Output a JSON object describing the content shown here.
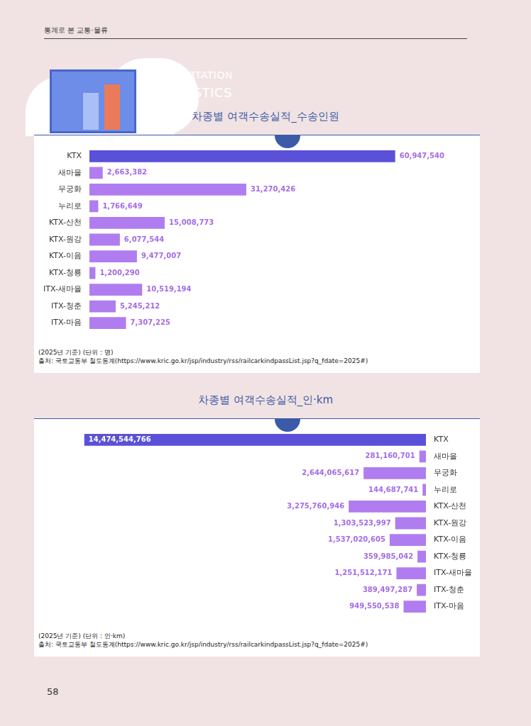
{
  "page": {
    "header": "통계로 본 교통·물류",
    "banner": [
      "TRANSPORTATION",
      "STATISTICS"
    ],
    "page_number": "58"
  },
  "chart_data": [
    {
      "type": "bar",
      "title": "차종별 여객수송실적_수송인원",
      "orientation": "horizontal",
      "categories": [
        "KTX",
        "새마을",
        "무궁화",
        "누리로",
        "KTX-산천",
        "KTX-원강",
        "KTX-이음",
        "KTX-청룡",
        "ITX-새마을",
        "ITX-청춘",
        "ITX-마음"
      ],
      "values": [
        60947540,
        2663382,
        31270426,
        1766649,
        15008773,
        6077544,
        9477007,
        1200290,
        10519194,
        5245212,
        7307225
      ],
      "value_labels": [
        "60,947,540",
        "2,663,382",
        "31,270,426",
        "1,766,649",
        "15,008,773",
        "6,077,544",
        "9,477,007",
        "1,200,290",
        "10,519,194",
        "5,245,212",
        "7,307,225"
      ],
      "colors": [
        "#5b50d8",
        "#b07df0",
        "#b07df0",
        "#b07df0",
        "#b07df0",
        "#b07df0",
        "#b07df0",
        "#b07df0",
        "#b07df0",
        "#b07df0",
        "#b07df0"
      ],
      "xlim": [
        0,
        75000000
      ],
      "data_labels": true,
      "tick_labels": "y",
      "grid": false,
      "note": "(2025년 기준) (단위 : 명)",
      "source": "출처: 국토교통부 철도통계(https://www.kric.go.kr/jsp/industry/rss/railcarkindpassList.jsp?q_fdate=2025#)"
    },
    {
      "type": "bar",
      "title": "차종별 여객수송실적_인·km",
      "orientation": "horizontal",
      "categories": [
        "KTX",
        "새마을",
        "무궁화",
        "누리로",
        "KTX-산천",
        "KTX-원강",
        "KTX-이음",
        "KTX-청룡",
        "ITX-새마을",
        "ITX-청춘",
        "ITX-마음"
      ],
      "values": [
        14474544766,
        281160701,
        2644065617,
        144687741,
        3275760946,
        1303523997,
        1537020605,
        359985042,
        1251512171,
        389497287,
        949550538
      ],
      "value_labels": [
        "14,474,544,766",
        "281,160,701",
        "2,644,065,617",
        "144,687,741",
        "3,275,760,946",
        "1,303,523,997",
        "1,537,020,605",
        "359,985,042",
        "1,251,512,171",
        "389,497,287",
        "949,550,538"
      ],
      "colors": [
        "#5b50d8",
        "#b07df0",
        "#b07df0",
        "#b07df0",
        "#b07df0",
        "#b07df0",
        "#b07df0",
        "#b07df0",
        "#b07df0",
        "#b07df0",
        "#b07df0"
      ],
      "xlim": [
        0,
        16000000000
      ],
      "data_labels": true,
      "tick_labels": "y",
      "grid": false,
      "note": "(2025년 기준) (단위 : 인·km)",
      "source": "출처: 국토교통부 철도통계(https://www.kric.go.kr/jsp/industry/rss/railcarkindpassList.jsp?q_fdate=2025#)"
    }
  ]
}
